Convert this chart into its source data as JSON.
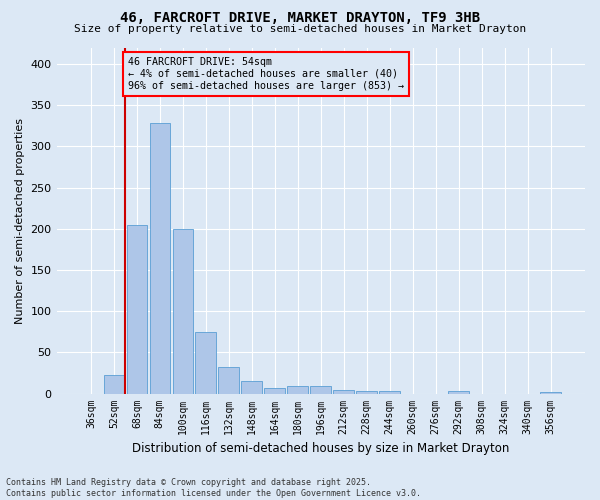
{
  "title": "46, FARCROFT DRIVE, MARKET DRAYTON, TF9 3HB",
  "subtitle": "Size of property relative to semi-detached houses in Market Drayton",
  "xlabel": "Distribution of semi-detached houses by size in Market Drayton",
  "ylabel": "Number of semi-detached properties",
  "footer_line1": "Contains HM Land Registry data © Crown copyright and database right 2025.",
  "footer_line2": "Contains public sector information licensed under the Open Government Licence v3.0.",
  "categories": [
    "36sqm",
    "52sqm",
    "68sqm",
    "84sqm",
    "100sqm",
    "116sqm",
    "132sqm",
    "148sqm",
    "164sqm",
    "180sqm",
    "196sqm",
    "212sqm",
    "228sqm",
    "244sqm",
    "260sqm",
    "276sqm",
    "292sqm",
    "308sqm",
    "324sqm",
    "340sqm",
    "356sqm"
  ],
  "values": [
    0,
    23,
    205,
    328,
    200,
    75,
    32,
    15,
    7,
    9,
    9,
    4,
    3,
    3,
    0,
    0,
    3,
    0,
    0,
    0,
    2
  ],
  "bar_color": "#aec6e8",
  "bar_edge_color": "#5a9fd4",
  "vline_color": "#cc0000",
  "annotation_title": "46 FARCROFT DRIVE: 54sqm",
  "annotation_line1": "← 4% of semi-detached houses are smaller (40)",
  "annotation_line2": "96% of semi-detached houses are larger (853) →",
  "annotation_box_color": "red",
  "ylim": [
    0,
    420
  ],
  "yticks": [
    0,
    50,
    100,
    150,
    200,
    250,
    300,
    350,
    400
  ],
  "background_color": "#dce8f5",
  "grid_color": "#ffffff"
}
